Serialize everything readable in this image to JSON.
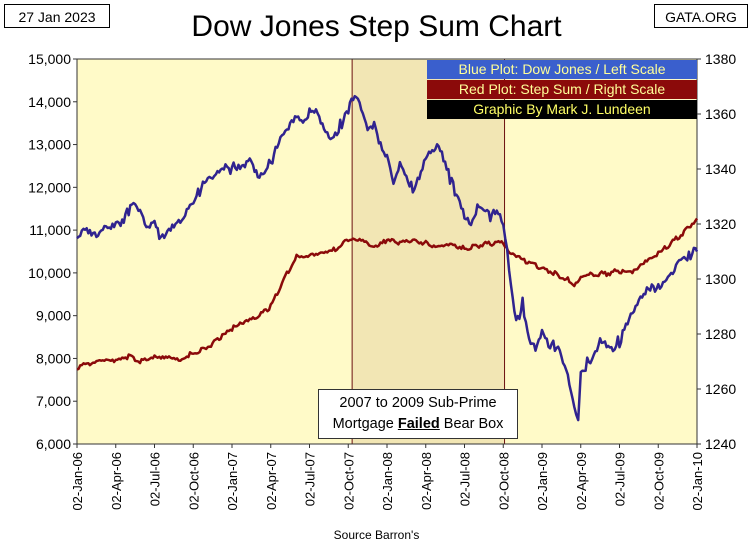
{
  "header": {
    "date": "27 Jan 2023",
    "source": "GATA.ORG",
    "title": "Dow Jones Step Sum Chart",
    "footer": "Source Barron's"
  },
  "note": {
    "line1": "2007 to 2009 Sub-Prime",
    "line2_pre": "Mortgage ",
    "line2_bold": "Failed",
    "line2_post": " Bear Box"
  },
  "legend": {
    "blue": "Blue Plot: Dow Jones / Left Scale",
    "red": "Red Plot: Step Sum / Right Scale",
    "credit": "Graphic By Mark J. Lundeen"
  },
  "colors": {
    "plot_bg": "#fffac8",
    "bear_box": "#f2e6b4",
    "blue_line": "#30238f",
    "red_line": "#8b0a0a"
  },
  "chart_data": {
    "type": "line",
    "title": "Dow Jones Step Sum Chart",
    "left_axis": {
      "label": "Dow Jones",
      "range": [
        6000,
        15000
      ],
      "ticks": [
        "6,000",
        "7,000",
        "8,000",
        "9,000",
        "10,000",
        "11,000",
        "12,000",
        "13,000",
        "14,000",
        "15,000"
      ]
    },
    "right_axis": {
      "label": "Step Sum",
      "range": [
        1240,
        1380
      ],
      "ticks": [
        "1240",
        "1260",
        "1280",
        "1300",
        "1320",
        "1340",
        "1360",
        "1380"
      ]
    },
    "x_axis": {
      "range": [
        0,
        48
      ],
      "ticks": [
        {
          "label": "02-Jan-06",
          "month": 0
        },
        {
          "label": "02-Apr-06",
          "month": 3
        },
        {
          "label": "02-Jul-06",
          "month": 6
        },
        {
          "label": "02-Oct-06",
          "month": 9
        },
        {
          "label": "02-Jan-07",
          "month": 12
        },
        {
          "label": "02-Apr-07",
          "month": 15
        },
        {
          "label": "02-Jul-07",
          "month": 18
        },
        {
          "label": "02-Oct-07",
          "month": 21
        },
        {
          "label": "02-Jan-08",
          "month": 24
        },
        {
          "label": "02-Apr-08",
          "month": 27
        },
        {
          "label": "02-Jul-08",
          "month": 30
        },
        {
          "label": "02-Oct-08",
          "month": 33
        },
        {
          "label": "02-Jan-09",
          "month": 36
        },
        {
          "label": "02-Apr-09",
          "month": 39
        },
        {
          "label": "02-Jul-09",
          "month": 42
        },
        {
          "label": "02-Oct-09",
          "month": 45
        },
        {
          "label": "02-Jan-10",
          "month": 48
        }
      ]
    },
    "bear_box_months": [
      21.3,
      33.1
    ],
    "series": [
      {
        "name": "Dow Jones",
        "axis": "left",
        "points": [
          [
            0,
            10800
          ],
          [
            0.5,
            10900
          ],
          [
            1,
            11000
          ],
          [
            1.5,
            10950
          ],
          [
            2,
            11100
          ],
          [
            2.5,
            11150
          ],
          [
            3,
            11200
          ],
          [
            3.5,
            11250
          ],
          [
            4,
            11400
          ],
          [
            4.5,
            11600
          ],
          [
            5,
            11250
          ],
          [
            5.5,
            11000
          ],
          [
            6,
            11100
          ],
          [
            6.5,
            10800
          ],
          [
            7,
            11000
          ],
          [
            7.5,
            11200
          ],
          [
            8,
            11300
          ],
          [
            8.5,
            11500
          ],
          [
            9,
            11700
          ],
          [
            9.5,
            11900
          ],
          [
            10,
            12100
          ],
          [
            10.5,
            12200
          ],
          [
            11,
            12300
          ],
          [
            11.5,
            12400
          ],
          [
            12,
            12450
          ],
          [
            12.5,
            12500
          ],
          [
            13,
            12600
          ],
          [
            13.5,
            12700
          ],
          [
            14,
            12300
          ],
          [
            14.5,
            12400
          ],
          [
            15,
            12600
          ],
          [
            15.5,
            12900
          ],
          [
            16,
            13200
          ],
          [
            16.5,
            13400
          ],
          [
            17,
            13600
          ],
          [
            17.5,
            13500
          ],
          [
            18,
            13800
          ],
          [
            18.5,
            13900
          ],
          [
            19,
            13500
          ],
          [
            19.5,
            13250
          ],
          [
            20,
            13300
          ],
          [
            20.5,
            13500
          ],
          [
            21,
            13800
          ],
          [
            21.5,
            14100
          ],
          [
            22,
            13800
          ],
          [
            22.5,
            13300
          ],
          [
            23,
            13400
          ],
          [
            23.5,
            13000
          ],
          [
            24,
            12800
          ],
          [
            24.5,
            12200
          ],
          [
            25,
            12600
          ],
          [
            25.5,
            12300
          ],
          [
            26,
            11900
          ],
          [
            26.5,
            12200
          ],
          [
            27,
            12600
          ],
          [
            27.5,
            12800
          ],
          [
            28,
            12900
          ],
          [
            28.5,
            12500
          ],
          [
            29,
            12100
          ],
          [
            29.5,
            11800
          ],
          [
            30,
            11400
          ],
          [
            30.5,
            11200
          ],
          [
            31,
            11600
          ],
          [
            31.5,
            11600
          ],
          [
            32,
            11300
          ],
          [
            32.5,
            11400
          ],
          [
            33,
            11100
          ],
          [
            33.3,
            10500
          ],
          [
            33.6,
            9600
          ],
          [
            34,
            8800
          ],
          [
            34.5,
            9300
          ],
          [
            35,
            8500
          ],
          [
            35.5,
            8300
          ],
          [
            36,
            8700
          ],
          [
            36.5,
            8400
          ],
          [
            37,
            8300
          ],
          [
            37.5,
            8000
          ],
          [
            38,
            7500
          ],
          [
            38.5,
            6800
          ],
          [
            38.8,
            6550
          ],
          [
            39,
            7600
          ],
          [
            39.5,
            7900
          ],
          [
            40,
            8100
          ],
          [
            40.5,
            8500
          ],
          [
            41,
            8400
          ],
          [
            41.5,
            8300
          ],
          [
            42,
            8400
          ],
          [
            42.5,
            8700
          ],
          [
            43,
            9000
          ],
          [
            43.5,
            9300
          ],
          [
            44,
            9500
          ],
          [
            44.5,
            9600
          ],
          [
            45,
            9700
          ],
          [
            45.5,
            9900
          ],
          [
            46,
            10000
          ],
          [
            46.5,
            10300
          ],
          [
            47,
            10400
          ],
          [
            47.5,
            10450
          ],
          [
            48,
            10500
          ]
        ]
      },
      {
        "name": "Step Sum",
        "axis": "right",
        "points": [
          [
            0,
            1268
          ],
          [
            1,
            1269
          ],
          [
            2,
            1270
          ],
          [
            3,
            1270
          ],
          [
            4,
            1272
          ],
          [
            5,
            1270
          ],
          [
            6,
            1272
          ],
          [
            7,
            1272
          ],
          [
            8,
            1271
          ],
          [
            9,
            1273
          ],
          [
            10,
            1275
          ],
          [
            11,
            1278
          ],
          [
            12,
            1282
          ],
          [
            13,
            1284
          ],
          [
            14,
            1286
          ],
          [
            15,
            1290
          ],
          [
            16,
            1300
          ],
          [
            17,
            1308
          ],
          [
            18,
            1309
          ],
          [
            19,
            1310
          ],
          [
            20,
            1311
          ],
          [
            21,
            1314
          ],
          [
            21.5,
            1315
          ],
          [
            22,
            1314
          ],
          [
            23,
            1311
          ],
          [
            24,
            1314
          ],
          [
            25,
            1313
          ],
          [
            26,
            1314
          ],
          [
            27,
            1313
          ],
          [
            28,
            1312
          ],
          [
            29,
            1313
          ],
          [
            30,
            1311
          ],
          [
            31,
            1312
          ],
          [
            32,
            1313
          ],
          [
            33,
            1313
          ],
          [
            33.5,
            1309
          ],
          [
            34,
            1308
          ],
          [
            35,
            1306
          ],
          [
            36,
            1304
          ],
          [
            37,
            1302
          ],
          [
            38,
            1300
          ],
          [
            38.5,
            1298
          ],
          [
            39,
            1301
          ],
          [
            40,
            1302
          ],
          [
            41,
            1302
          ],
          [
            42,
            1303
          ],
          [
            43,
            1302
          ],
          [
            44,
            1306
          ],
          [
            45,
            1309
          ],
          [
            46,
            1313
          ],
          [
            47,
            1317
          ],
          [
            48,
            1322
          ]
        ]
      }
    ]
  }
}
